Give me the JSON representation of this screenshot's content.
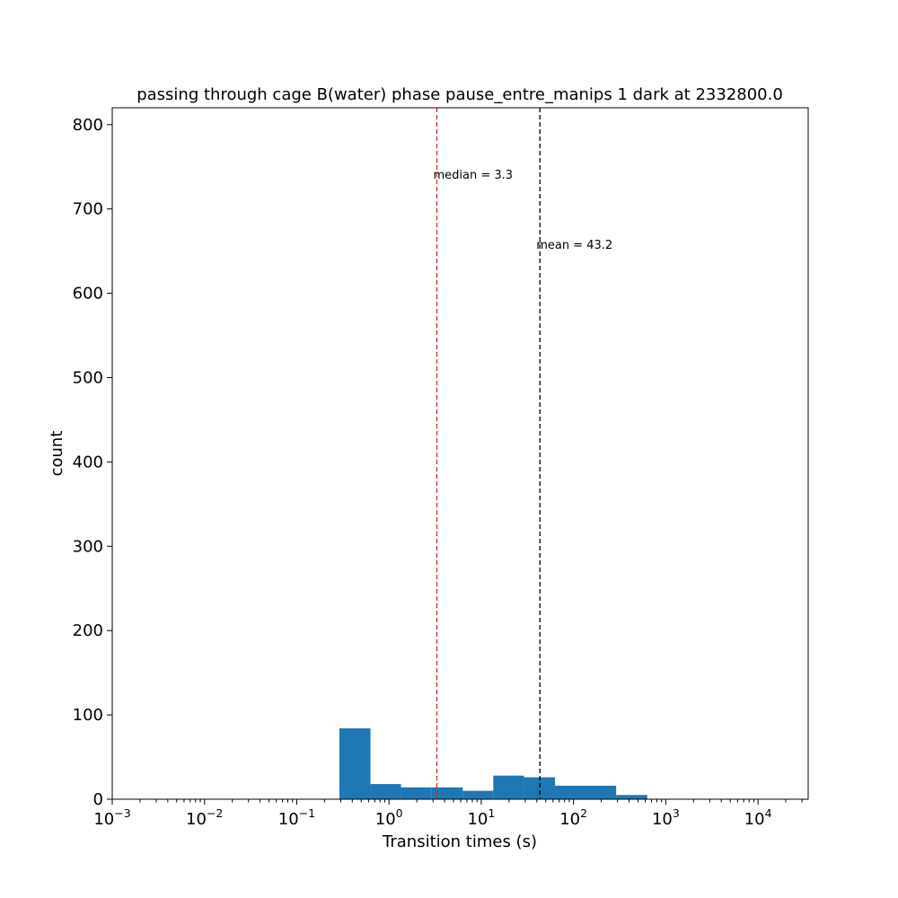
{
  "chart_data": {
    "type": "bar",
    "title": "passing through cage B(water) phase pause_entre_manips 1 dark at 2332800.0",
    "xlabel": "Transition times (s)",
    "ylabel": "count",
    "xscale": "log",
    "xlim": [
      0.001,
      35000
    ],
    "ylim": [
      0,
      820
    ],
    "x_ticks": [
      {
        "base": "10",
        "exp": "−3",
        "value": 0.001
      },
      {
        "base": "10",
        "exp": "−2",
        "value": 0.01
      },
      {
        "base": "10",
        "exp": "−1",
        "value": 0.1
      },
      {
        "base": "10",
        "exp": "0",
        "value": 1
      },
      {
        "base": "10",
        "exp": "1",
        "value": 10
      },
      {
        "base": "10",
        "exp": "2",
        "value": 100
      },
      {
        "base": "10",
        "exp": "3",
        "value": 1000
      },
      {
        "base": "10",
        "exp": "4",
        "value": 10000
      }
    ],
    "y_ticks": [
      "0",
      "100",
      "200",
      "300",
      "400",
      "500",
      "600",
      "700",
      "800"
    ],
    "bins": [
      {
        "x0": 0.29,
        "x1": 0.63,
        "count": 84
      },
      {
        "x0": 0.63,
        "x1": 1.35,
        "count": 18
      },
      {
        "x0": 1.35,
        "x1": 2.9,
        "count": 14
      },
      {
        "x0": 2.9,
        "x1": 6.3,
        "count": 14
      },
      {
        "x0": 6.3,
        "x1": 13.5,
        "count": 10
      },
      {
        "x0": 13.5,
        "x1": 29,
        "count": 28
      },
      {
        "x0": 29,
        "x1": 63,
        "count": 26
      },
      {
        "x0": 63,
        "x1": 135,
        "count": 16
      },
      {
        "x0": 135,
        "x1": 290,
        "count": 16
      },
      {
        "x0": 290,
        "x1": 630,
        "count": 5
      }
    ],
    "bar_color": "#1f77b4",
    "grid": false,
    "annotations": [
      {
        "text": "median =  3.3",
        "x": 3.3,
        "y": 740,
        "line_color": "#d62728",
        "line_style": "dashed"
      },
      {
        "text": "mean = 43.2",
        "x": 43.2,
        "y": 657,
        "line_color": "#000000",
        "line_style": "dashed"
      }
    ]
  }
}
